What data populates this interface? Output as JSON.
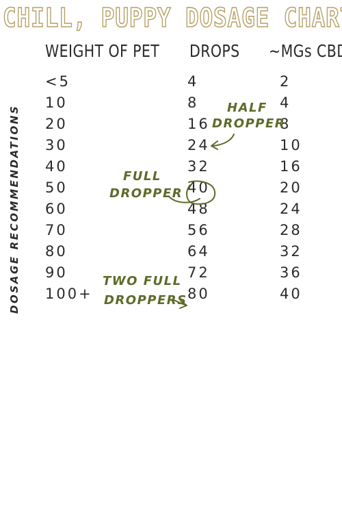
{
  "title": "CHILL, PUPPY DOSAGE CHART",
  "headers": {
    "weight": "WEIGHT OF PET",
    "drops": "DROPS",
    "mgs": "~MGs CBD"
  },
  "sidebar_label": "DOSAGE RECOMMENDATIONS",
  "rows": [
    {
      "weight": "<5",
      "drops": "4",
      "mgs": "2"
    },
    {
      "weight": "10",
      "drops": "8",
      "mgs": "4"
    },
    {
      "weight": "20",
      "drops": "16",
      "mgs": "8"
    },
    {
      "weight": "30",
      "drops": "24",
      "mgs": "10"
    },
    {
      "weight": "40",
      "drops": "32",
      "mgs": "16"
    },
    {
      "weight": "50",
      "drops": "40",
      "mgs": "20"
    },
    {
      "weight": "60",
      "drops": "48",
      "mgs": "24"
    },
    {
      "weight": "70",
      "drops": "56",
      "mgs": "28"
    },
    {
      "weight": "80",
      "drops": "64",
      "mgs": "32"
    },
    {
      "weight": "90",
      "drops": "72",
      "mgs": "36"
    },
    {
      "weight": "100+",
      "drops": "80",
      "mgs": "40"
    }
  ],
  "annotations": {
    "half_line1": "HALF",
    "half_line2": "DROPPER",
    "full_line1": "FULL",
    "full_line2": "DROPPER",
    "two_line1": "TWO FULL",
    "two_line2": "DROPPERS"
  },
  "colors": {
    "title_outline": "#b7a167",
    "text": "#2b2b2b",
    "annotation": "#5d6b2a"
  }
}
